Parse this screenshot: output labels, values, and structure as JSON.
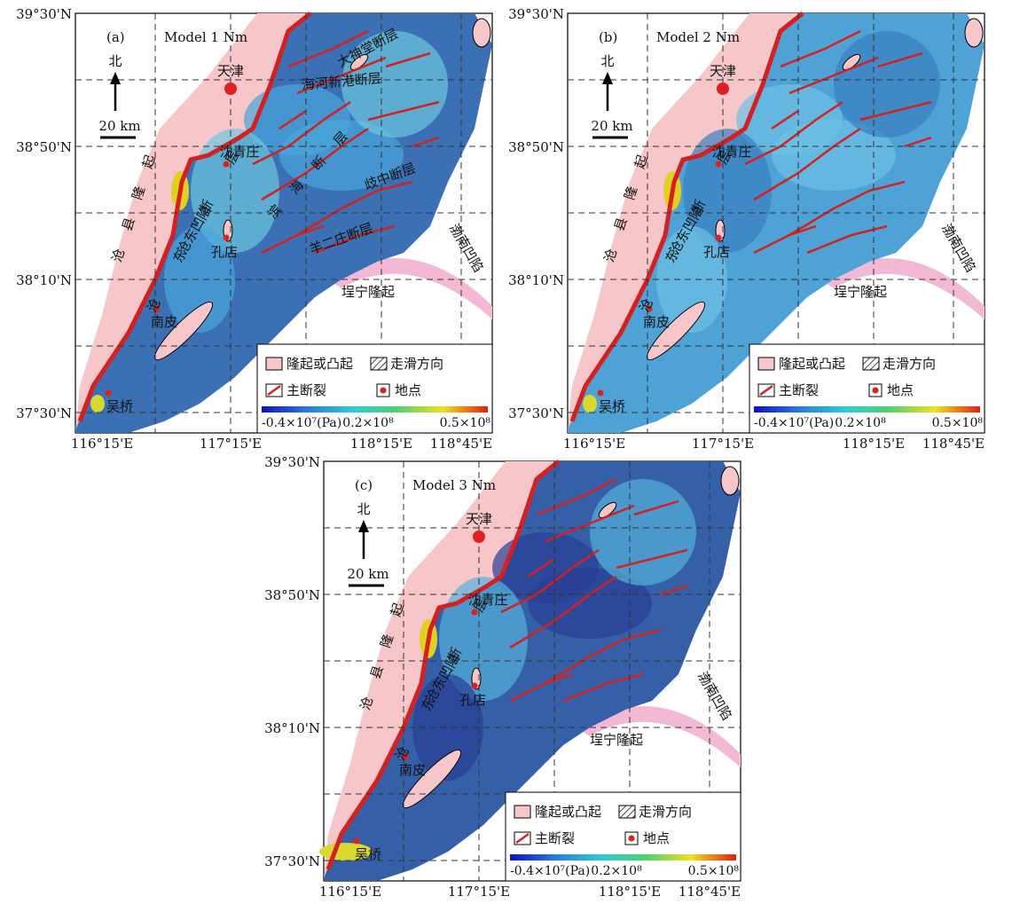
{
  "panels": [
    {
      "label": "(a)",
      "model": "Model 1 Nm",
      "fault_labels": [
        "大神堂断层",
        "海河新港断层",
        "滨海断层",
        "歧中断层",
        "羊二庄断层"
      ]
    },
    {
      "label": "(b)",
      "model": "Model 2 Nm"
    },
    {
      "label": "(c)",
      "model": "Model 3 Nm"
    }
  ],
  "axes": {
    "lat": [
      "39°30'N",
      "38°50'N",
      "38°10'N",
      "37°30'N"
    ],
    "lon": [
      "116°15'E",
      "117°15'E",
      "118°15'E",
      "118°45'E"
    ]
  },
  "north": "北",
  "scale": "20 km",
  "places": [
    "天津",
    "沈青庄",
    "孔店",
    "南皮",
    "吴桥"
  ],
  "units": [
    "沧县隆起",
    "沧东断层",
    "沧东凹陷",
    "埕宁隆起",
    "渤南凹陷"
  ],
  "legend": {
    "uplift": "隆起或凸起",
    "strike_slip": "走滑方向",
    "fault": "主断裂",
    "site": "地点",
    "colorbar": [
      "-0.4×10⁷(Pa)",
      "0.2×10⁸",
      "0.5×10⁸"
    ]
  }
}
